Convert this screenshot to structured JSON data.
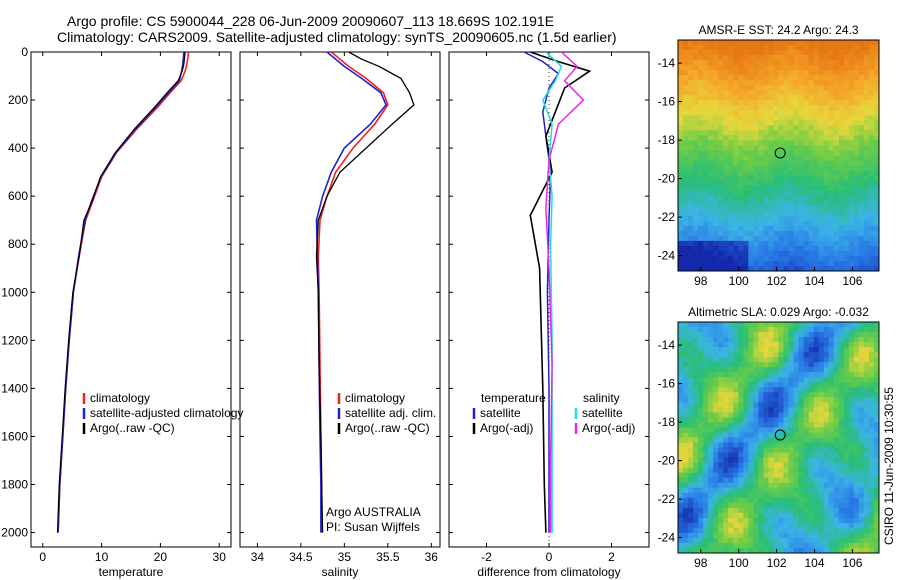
{
  "header": {
    "line1": "Argo profile: CS 5900044_228 06-Jun-2009 20090607_113 18.669S 102.191E",
    "line2": "Climatology: CARS2009. Satellite-adjusted climatology: synTS_20090605.nc (1.5d earlier)"
  },
  "colors": {
    "climatology": "#ee2222",
    "satellite": "#2222cc",
    "argo": "#000000",
    "sat_salinity": "#22dddd",
    "argo_salinity_adj": "#ee22ee"
  },
  "chart_data": [
    {
      "type": "line",
      "id": "temperature",
      "xlabel": "temperature",
      "xlim": [
        -2,
        32
      ],
      "xticks": [
        "0",
        "10",
        "20",
        "30"
      ],
      "xtick_values": [
        0,
        10,
        20,
        30
      ],
      "ylim": [
        0,
        2060
      ],
      "yticks": [
        "0",
        "200",
        "400",
        "600",
        "800",
        "1000",
        "1200",
        "1400",
        "1600",
        "1800",
        "2000"
      ],
      "ytick_values": [
        0,
        200,
        400,
        600,
        800,
        1000,
        1200,
        1400,
        1600,
        1800,
        2000
      ],
      "legend": [
        "climatology",
        "satellite-adjusted climatology",
        "Argo(..raw -QC)"
      ],
      "series": [
        {
          "name": "climatology",
          "color_key": "climatology",
          "width": 1.6,
          "x": [
            24.8,
            24.5,
            24.2,
            23.5,
            22.0,
            19.5,
            16.0,
            12.5,
            10.0,
            8.5,
            7.3,
            6.2,
            5.2,
            4.5,
            3.9,
            3.4,
            2.9,
            2.6
          ],
          "y": [
            0,
            50,
            80,
            120,
            160,
            230,
            320,
            420,
            520,
            620,
            700,
            850,
            1000,
            1200,
            1400,
            1600,
            1800,
            2000
          ]
        },
        {
          "name": "satellite-adjusted climatology",
          "color_key": "satellite",
          "width": 1.6,
          "x": [
            24.0,
            23.8,
            23.6,
            23.2,
            21.8,
            19.2,
            15.8,
            12.4,
            9.9,
            8.3,
            7.2,
            6.1,
            5.2,
            4.5,
            3.9,
            3.4,
            2.9,
            2.6
          ],
          "y": [
            0,
            50,
            80,
            120,
            160,
            230,
            320,
            420,
            520,
            620,
            700,
            850,
            1000,
            1200,
            1400,
            1600,
            1800,
            2000
          ]
        },
        {
          "name": "Argo(..raw -QC)",
          "color_key": "argo",
          "width": 1.2,
          "x": [
            24.2,
            24.0,
            23.7,
            23.0,
            21.5,
            19.0,
            15.6,
            12.3,
            9.8,
            8.4,
            7.0,
            6.2,
            5.1,
            4.4,
            3.8,
            3.3,
            2.8,
            2.5
          ],
          "y": [
            0,
            50,
            80,
            120,
            160,
            230,
            320,
            420,
            520,
            620,
            700,
            850,
            1000,
            1200,
            1400,
            1600,
            1800,
            2000
          ]
        }
      ]
    },
    {
      "type": "line",
      "id": "salinity",
      "xlabel": "salinity",
      "xlim": [
        33.8,
        36.1
      ],
      "xticks": [
        "34",
        "34.5",
        "35",
        "35.5",
        "36"
      ],
      "xtick_values": [
        34,
        34.5,
        35,
        35.5,
        36
      ],
      "ylim": [
        0,
        2060
      ],
      "legend": [
        "climatology",
        "satellite adj. clim.",
        "Argo(..raw -QC)"
      ],
      "annotations": [
        "Argo AUSTRALIA",
        "PI: Susan Wijffels"
      ],
      "series": [
        {
          "name": "climatology",
          "color_key": "climatology",
          "width": 1.6,
          "x": [
            34.85,
            34.95,
            35.05,
            35.25,
            35.45,
            35.5,
            35.35,
            35.1,
            34.9,
            34.8,
            34.72,
            34.7,
            34.71,
            34.72,
            34.73,
            34.74,
            34.74
          ],
          "y": [
            0,
            30,
            60,
            110,
            170,
            220,
            300,
            400,
            500,
            600,
            700,
            850,
            1000,
            1300,
            1600,
            1800,
            2000
          ]
        },
        {
          "name": "satellite adj. clim.",
          "color_key": "satellite",
          "width": 1.6,
          "x": [
            34.8,
            34.9,
            35.0,
            35.2,
            35.42,
            35.48,
            35.3,
            35.0,
            34.85,
            34.75,
            34.68,
            34.69,
            34.7,
            34.71,
            34.72,
            34.73,
            34.73
          ],
          "y": [
            0,
            30,
            60,
            110,
            170,
            220,
            300,
            400,
            500,
            600,
            700,
            850,
            1000,
            1300,
            1600,
            1800,
            2000
          ]
        },
        {
          "name": "Argo(..raw -QC)",
          "color_key": "argo",
          "width": 1.3,
          "x": [
            35.05,
            35.2,
            35.4,
            35.65,
            35.75,
            35.8,
            35.55,
            35.25,
            34.95,
            34.8,
            34.7,
            34.68,
            34.7,
            34.71,
            34.73,
            34.74,
            34.75
          ],
          "y": [
            0,
            30,
            60,
            110,
            170,
            220,
            300,
            400,
            500,
            600,
            700,
            850,
            1000,
            1300,
            1600,
            1800,
            2000
          ]
        }
      ]
    },
    {
      "type": "line",
      "id": "difference",
      "xlabel": "difference from climatology",
      "xlim": [
        -3.2,
        3.2
      ],
      "xticks": [
        "-2",
        "0",
        "2"
      ],
      "xtick_values": [
        -2,
        0,
        2
      ],
      "ylim": [
        0,
        2060
      ],
      "legend_left_title": "temperature",
      "legend_left": [
        "satellite",
        "Argo(-adj)"
      ],
      "legend_right_title": "salinity",
      "legend_right": [
        "satellite",
        "Argo(-adj)"
      ],
      "series": [
        {
          "name": "temperature satellite",
          "color_key": "satellite",
          "width": 1.5,
          "x": [
            -0.8,
            -0.2,
            0.3,
            0.0,
            -0.2,
            -0.1,
            0.05,
            0.0,
            -0.05,
            0.0,
            0.0,
            0.0
          ],
          "y": [
            0,
            40,
            90,
            150,
            250,
            350,
            500,
            700,
            1000,
            1400,
            1800,
            2000
          ]
        },
        {
          "name": "temperature Argo(-adj)",
          "color_key": "argo",
          "width": 1.6,
          "x": [
            -0.6,
            0.3,
            1.3,
            0.5,
            0.2,
            -0.1,
            0.1,
            -0.6,
            -0.3,
            -0.2,
            -0.15,
            -0.1
          ],
          "y": [
            0,
            40,
            80,
            150,
            250,
            350,
            500,
            680,
            900,
            1400,
            1800,
            2000
          ]
        },
        {
          "name": "salinity satellite",
          "color_key": "sat_salinity",
          "width": 1.5,
          "x": [
            -0.1,
            0.4,
            0.2,
            -0.2,
            0.1,
            0.0,
            0.1,
            0.05,
            0.1,
            0.1,
            0.1
          ],
          "y": [
            0,
            60,
            120,
            200,
            300,
            450,
            600,
            800,
            1200,
            1700,
            2000
          ]
        },
        {
          "name": "salinity Argo(-adj)",
          "color_key": "argo_salinity_adj",
          "width": 1.5,
          "x": [
            0.4,
            0.9,
            0.5,
            1.1,
            0.3,
            0.0,
            -0.1,
            0.0,
            0.1,
            0.05,
            0.05
          ],
          "y": [
            0,
            60,
            120,
            200,
            300,
            450,
            650,
            900,
            1300,
            1700,
            2000
          ]
        }
      ]
    },
    {
      "type": "heatmap",
      "id": "sst_map",
      "title": "AMSR-E SST: 24.2 Argo: 24.3",
      "xlim": [
        96.8,
        107.4
      ],
      "ylim": [
        -24.8,
        -12.8
      ],
      "xticks": [
        "98",
        "100",
        "102",
        "104",
        "106"
      ],
      "xtick_values": [
        98,
        100,
        102,
        104,
        106
      ],
      "yticks": [
        "-14",
        "-16",
        "-18",
        "-20",
        "-22",
        "-24"
      ],
      "ytick_values": [
        -14,
        -16,
        -18,
        -20,
        -22,
        -24
      ],
      "marker": {
        "lon": 102.19,
        "lat": -18.67
      }
    },
    {
      "type": "heatmap",
      "id": "sla_map",
      "title": "Altimetric SLA: 0.029 Argo: -0.032",
      "xlim": [
        96.8,
        107.4
      ],
      "ylim": [
        -24.8,
        -12.8
      ],
      "xticks": [
        "98",
        "100",
        "102",
        "104",
        "106"
      ],
      "xtick_values": [
        98,
        100,
        102,
        104,
        106
      ],
      "yticks": [
        "-14",
        "-16",
        "-18",
        "-20",
        "-22",
        "-24"
      ],
      "ytick_values": [
        -14,
        -16,
        -18,
        -20,
        -22,
        -24
      ],
      "marker": {
        "lon": 102.19,
        "lat": -18.67
      }
    }
  ],
  "side_label": "CSIRO 11-Jun-2009 10:30:55"
}
